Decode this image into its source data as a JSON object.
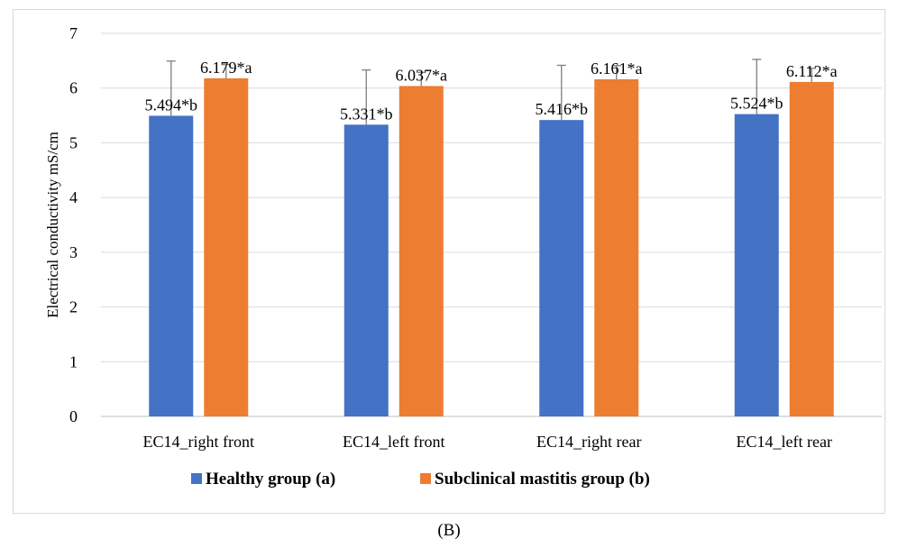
{
  "chart_data": {
    "type": "bar",
    "title": "",
    "xlabel": "",
    "ylabel": "Electrical conductivity mS/cm",
    "ylim": [
      0,
      7
    ],
    "yticks": [
      0,
      1,
      2,
      3,
      4,
      5,
      6,
      7
    ],
    "grid": true,
    "legend_position": "bottom",
    "categories": [
      "EC14_right front",
      "EC14_left front",
      "EC14_right rear",
      "EC14_left rear"
    ],
    "series": [
      {
        "name": "Healthy group (a)",
        "color": "#4472C4",
        "values": [
          5.494,
          5.331,
          5.416,
          5.524
        ],
        "error": [
          1.0,
          1.0,
          1.0,
          1.0
        ],
        "labels": [
          "5.494*b",
          "5.331*b",
          "5.416*b",
          "5.524*b"
        ]
      },
      {
        "name": "Subclinical mastitis group (b)",
        "color": "#ED7D31",
        "values": [
          6.179,
          6.037,
          6.161,
          6.112
        ],
        "error": [
          0.25,
          0.25,
          0.25,
          0.25
        ],
        "labels": [
          "6.179*a",
          "6.037*a",
          "6.161*a",
          "6.112*a"
        ]
      }
    ]
  },
  "caption": "(B)",
  "colors": {
    "gridline": "#d9d9d9",
    "axis": "#bfbfbf",
    "errorbar": "#7f7f7f"
  }
}
